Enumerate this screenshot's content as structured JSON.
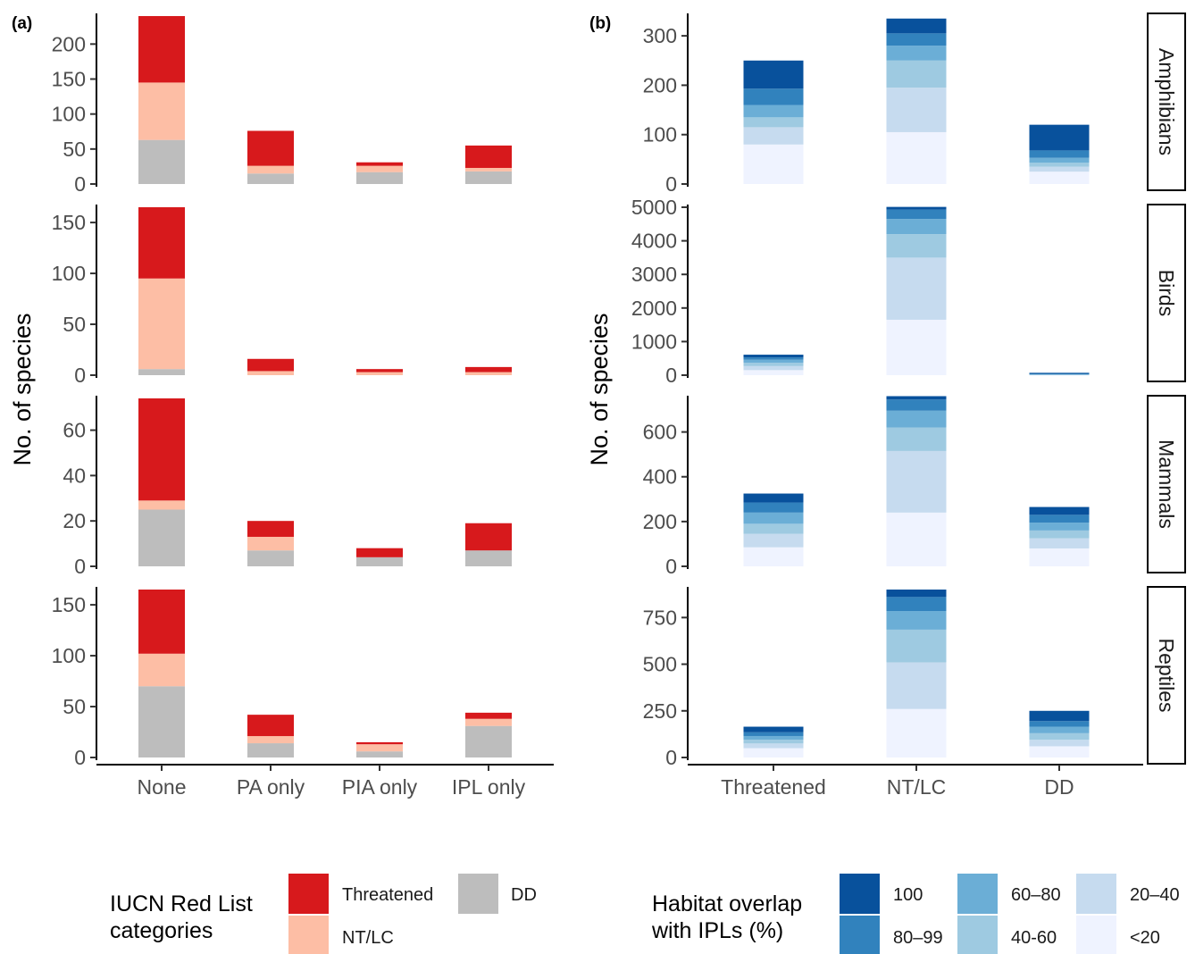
{
  "colors": {
    "iucn": {
      "threatened": "#d7191c",
      "ntlc": "#fdbea5",
      "dd": "#bdbdbd"
    },
    "overlap": {
      "b100": "#08519c",
      "b80_99": "#3182bd",
      "b60_80": "#6baed6",
      "b40_60": "#9ecae1",
      "b20_40": "#c6dbef",
      "b_lt20": "#eff3ff"
    }
  },
  "panel_a": {
    "label": "(a)",
    "ylabel": "No. of species",
    "legend": {
      "title_line1": "IUCN Red List",
      "title_line2": "categories",
      "items": {
        "threatened": "Threatened",
        "ntlc": "NT/LC",
        "dd": "DD"
      }
    }
  },
  "panel_b": {
    "label": "(b)",
    "ylabel": "No. of species",
    "strips": {
      "amphibians": "Amphibians",
      "birds": "Birds",
      "mammals": "Mammals",
      "reptiles": "Reptiles"
    },
    "legend": {
      "title_line1": "Habitat overlap",
      "title_line2": "with IPLs (%)",
      "items": {
        "b100": "100",
        "b80_99": "80–99",
        "b60_80": "60–80",
        "b40_60": "40-60",
        "b20_40": "20–40",
        "b_lt20": "<20"
      }
    }
  },
  "chart_data": [
    {
      "type": "bar",
      "stacked": true,
      "panel": "(a)",
      "ylabel": "No. of species",
      "categories": [
        "None",
        "PA only",
        "PIA only",
        "IPL only"
      ],
      "series_order": [
        "DD",
        "NT/LC",
        "Threatened"
      ],
      "facets": [
        {
          "name": "Amphibians",
          "ylim": [
            0,
            240
          ],
          "ticks": [
            0,
            50,
            100,
            150,
            200
          ],
          "series": [
            {
              "name": "DD",
              "values": [
                63,
                15,
                17,
                18
              ]
            },
            {
              "name": "NT/LC",
              "values": [
                82,
                11,
                9,
                5
              ]
            },
            {
              "name": "Threatened",
              "values": [
                95,
                50,
                5,
                32
              ]
            }
          ]
        },
        {
          "name": "Birds",
          "ylim": [
            0,
            165
          ],
          "ticks": [
            0,
            50,
            100,
            150
          ],
          "series": [
            {
              "name": "DD",
              "values": [
                6,
                0,
                0,
                0
              ]
            },
            {
              "name": "NT/LC",
              "values": [
                89,
                4,
                3,
                3
              ]
            },
            {
              "name": "Threatened",
              "values": [
                70,
                12,
                3,
                5
              ]
            }
          ]
        },
        {
          "name": "Mammals",
          "ylim": [
            0,
            74
          ],
          "ticks": [
            0,
            20,
            40,
            60
          ],
          "series": [
            {
              "name": "DD",
              "values": [
                25,
                7,
                4,
                7
              ]
            },
            {
              "name": "NT/LC",
              "values": [
                4,
                6,
                0,
                0
              ]
            },
            {
              "name": "Threatened",
              "values": [
                45,
                7,
                4,
                12
              ]
            }
          ]
        },
        {
          "name": "Reptiles",
          "ylim": [
            0,
            165
          ],
          "ticks": [
            0,
            50,
            100,
            150
          ],
          "series": [
            {
              "name": "DD",
              "values": [
                70,
                14,
                6,
                31
              ]
            },
            {
              "name": "NT/LC",
              "values": [
                32,
                7,
                7,
                7
              ]
            },
            {
              "name": "Threatened",
              "values": [
                63,
                21,
                2,
                6
              ]
            }
          ]
        }
      ]
    },
    {
      "type": "bar",
      "stacked": true,
      "panel": "(b)",
      "ylabel": "No. of species",
      "categories": [
        "Threatened",
        "NT/LC",
        "DD"
      ],
      "series_order": [
        "<20",
        "20–40",
        "40-60",
        "60–80",
        "80–99",
        "100"
      ],
      "facets": [
        {
          "name": "Amphibians",
          "ylim": [
            0,
            340
          ],
          "ticks": [
            0,
            100,
            200,
            300
          ],
          "series": [
            {
              "name": "<20",
              "values": [
                80,
                105,
                25
              ]
            },
            {
              "name": "20–40",
              "values": [
                35,
                90,
                10
              ]
            },
            {
              "name": "40-60",
              "values": [
                20,
                55,
                8
              ]
            },
            {
              "name": "60–80",
              "values": [
                25,
                30,
                10
              ]
            },
            {
              "name": "80–99",
              "values": [
                33,
                25,
                15
              ]
            },
            {
              "name": "100",
              "values": [
                57,
                30,
                52
              ]
            }
          ]
        },
        {
          "name": "Birds",
          "ylim": [
            0,
            5000
          ],
          "ticks": [
            0,
            1000,
            2000,
            3000,
            4000,
            5000
          ],
          "series": [
            {
              "name": "<20",
              "values": [
                150,
                1650,
                15
              ]
            },
            {
              "name": "20–40",
              "values": [
                120,
                1850,
                10
              ]
            },
            {
              "name": "40-60",
              "values": [
                100,
                700,
                10
              ]
            },
            {
              "name": "60–80",
              "values": [
                90,
                450,
                10
              ]
            },
            {
              "name": "80–99",
              "values": [
                70,
                280,
                10
              ]
            },
            {
              "name": "100",
              "values": [
                80,
                80,
                15
              ]
            }
          ]
        },
        {
          "name": "Mammals",
          "ylim": [
            0,
            750
          ],
          "ticks": [
            0,
            200,
            400,
            600
          ],
          "series": [
            {
              "name": "<20",
              "values": [
                85,
                240,
                80
              ]
            },
            {
              "name": "20–40",
              "values": [
                60,
                275,
                45
              ]
            },
            {
              "name": "40-60",
              "values": [
                45,
                105,
                35
              ]
            },
            {
              "name": "60–80",
              "values": [
                50,
                75,
                35
              ]
            },
            {
              "name": "80–99",
              "values": [
                45,
                50,
                35
              ]
            },
            {
              "name": "100",
              "values": [
                40,
                15,
                35
              ]
            }
          ]
        },
        {
          "name": "Reptiles",
          "ylim": [
            0,
            900
          ],
          "ticks": [
            0,
            250,
            500,
            750
          ],
          "series": [
            {
              "name": "<20",
              "values": [
                50,
                260,
                60
              ]
            },
            {
              "name": "20–40",
              "values": [
                25,
                250,
                35
              ]
            },
            {
              "name": "40-60",
              "values": [
                20,
                175,
                35
              ]
            },
            {
              "name": "60–80",
              "values": [
                20,
                100,
                35
              ]
            },
            {
              "name": "80–99",
              "values": [
                20,
                75,
                30
              ]
            },
            {
              "name": "100",
              "values": [
                30,
                40,
                55
              ]
            }
          ]
        }
      ]
    }
  ]
}
